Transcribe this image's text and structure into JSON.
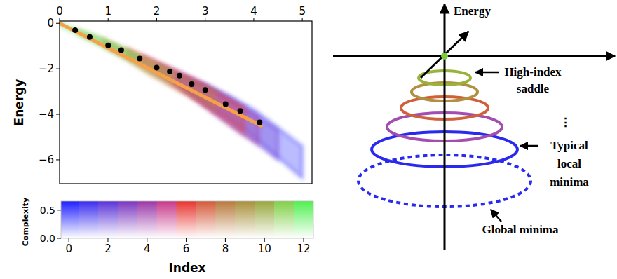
{
  "chart_data": [
    {
      "type": "scatter",
      "y_label": "Energy",
      "xlim": [
        0,
        5.2
      ],
      "ylim": [
        -7.05,
        0.1
      ],
      "xticks": [
        0,
        1,
        2,
        3,
        4,
        5
      ],
      "yticks": [
        0,
        {
          "value": -2,
          "label": "−2"
        },
        {
          "value": -4,
          "label": "−4"
        },
        {
          "value": -6,
          "label": "−6"
        }
      ],
      "series": [
        {
          "type": "band",
          "color": "#2a2aff",
          "x": [
            2.4,
            3.0,
            3.5,
            4.0,
            4.5,
            5.0
          ],
          "upper": [
            -2.3,
            -2.7,
            -3.2,
            -3.8,
            -4.6,
            -5.4
          ],
          "lower": [
            -2.6,
            -3.5,
            -4.2,
            -5.0,
            -5.9,
            -6.8
          ]
        },
        {
          "type": "band",
          "color": "#6a3ad0",
          "x": [
            2.0,
            2.5,
            3.0,
            3.5,
            4.0,
            4.5
          ],
          "upper": [
            -1.8,
            -2.2,
            -2.7,
            -3.3,
            -4.0,
            -4.7
          ],
          "lower": [
            -2.1,
            -2.8,
            -3.6,
            -4.4,
            -5.2,
            -6.0
          ]
        },
        {
          "type": "band",
          "color": "#a83aa0",
          "x": [
            1.7,
            2.2,
            2.7,
            3.2,
            3.7,
            4.1
          ],
          "upper": [
            -1.4,
            -1.9,
            -2.4,
            -3.0,
            -3.6,
            -4.1
          ],
          "lower": [
            -1.7,
            -2.4,
            -3.2,
            -4.0,
            -4.8,
            -5.3
          ]
        },
        {
          "type": "band",
          "color": "#e83a2e",
          "x": [
            1.4,
            1.9,
            2.4,
            2.9,
            3.4,
            3.8
          ],
          "upper": [
            -1.1,
            -1.6,
            -2.1,
            -2.6,
            -3.2,
            -3.7
          ],
          "lower": [
            -1.4,
            -2.1,
            -2.8,
            -3.5,
            -4.2,
            -4.8
          ]
        },
        {
          "type": "band",
          "color": "#c08040",
          "x": [
            0.9,
            1.4,
            1.9,
            2.4,
            2.9,
            3.2
          ],
          "upper": [
            -0.7,
            -1.2,
            -1.7,
            -2.2,
            -2.7,
            -3.0
          ],
          "lower": [
            -1.0,
            -1.6,
            -2.3,
            -2.9,
            -3.4,
            -3.8
          ]
        },
        {
          "type": "band",
          "color": "#a0b040",
          "x": [
            0.4,
            0.9,
            1.4,
            1.9,
            2.3
          ],
          "upper": [
            -0.3,
            -0.7,
            -1.2,
            -1.7,
            -2.1
          ],
          "lower": [
            -0.5,
            -1.0,
            -1.6,
            -2.2,
            -2.6
          ]
        },
        {
          "type": "band",
          "color": "#60e060",
          "x": [
            0.0,
            0.4,
            0.8,
            1.2,
            1.6
          ],
          "upper": [
            0.0,
            -0.3,
            -0.6,
            -1.0,
            -1.4
          ],
          "lower": [
            -0.1,
            -0.5,
            -0.9,
            -1.3,
            -1.7
          ]
        },
        {
          "type": "line",
          "color": "#f5a04a",
          "x": [
            0,
            4.15
          ],
          "values": [
            0,
            -4.5
          ]
        },
        {
          "type": "scatter",
          "color": "#000000",
          "x": [
            0.32,
            0.62,
            1.0,
            1.27,
            1.65,
            2.0,
            2.27,
            2.47,
            2.72,
            3.0,
            3.42,
            3.72,
            4.12
          ],
          "values": [
            -0.3,
            -0.6,
            -0.97,
            -1.18,
            -1.55,
            -1.95,
            -2.12,
            -2.3,
            -2.67,
            -2.93,
            -3.55,
            -3.85,
            -4.35
          ]
        }
      ]
    },
    {
      "type": "heatmap",
      "x_label": "Index",
      "y_label": "Complexity",
      "x": [
        0,
        1,
        2,
        3,
        4,
        5,
        6,
        7,
        8,
        9,
        10,
        11,
        12
      ],
      "colors": [
        "#2020ff",
        "#3a2cf0",
        "#5a33d8",
        "#7a36c0",
        "#9a38a8",
        "#c8388a",
        "#e8342e",
        "#d45a3a",
        "#b87a3c",
        "#a8903c",
        "#98a83e",
        "#80d048",
        "#50f050"
      ],
      "xlim": [
        -0.4,
        12.5
      ],
      "ylim": [
        0,
        0.66
      ],
      "xticks": [
        0,
        2,
        4,
        6,
        8,
        10,
        12
      ],
      "yticks": [
        {
          "value": 0,
          "label": "0.0"
        },
        {
          "value": 0.5,
          "label": "0.5"
        }
      ]
    }
  ],
  "diagram": {
    "axis_label": "Energy",
    "labels": [
      {
        "lines": [
          "High-index",
          "saddle"
        ]
      },
      {
        "lines": [
          "⋮"
        ]
      },
      {
        "lines": [
          "Typical",
          "local",
          "minima"
        ]
      },
      {
        "lines": [
          "Global minima"
        ]
      }
    ]
  }
}
